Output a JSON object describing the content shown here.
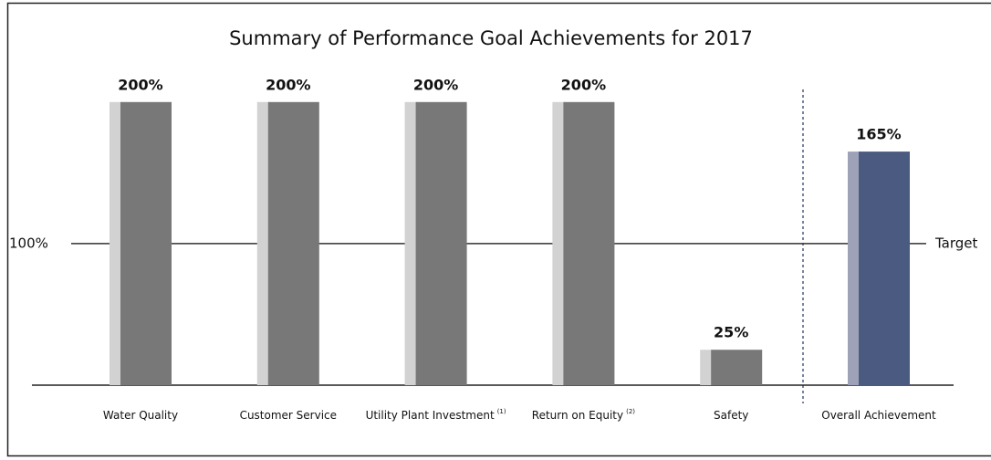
{
  "chart_data": {
    "type": "bar",
    "title": "Summary of Performance Goal Achievements for 2017",
    "categories": [
      "Water Quality",
      "Customer Service",
      "Utility Plant Investment",
      "Return on Equity",
      "Safety",
      "Overall Achievement"
    ],
    "footnote_marks": [
      null,
      null,
      "(1)",
      "(2)",
      null,
      null
    ],
    "values": [
      200,
      200,
      200,
      200,
      25,
      165
    ],
    "value_labels": [
      "200%",
      "200%",
      "200%",
      "200%",
      "25%",
      "165%"
    ],
    "colors": [
      "#787878",
      "#787878",
      "#787878",
      "#787878",
      "#787878",
      "#4b5a80"
    ],
    "shade_colors": [
      "#d2d2d2",
      "#d2d2d2",
      "#d2d2d2",
      "#d2d2d2",
      "#d2d2d2",
      "#9ea2b8"
    ],
    "ylim": [
      0,
      245
    ],
    "target": {
      "value": 100,
      "label": "100%",
      "name": "Target"
    }
  }
}
